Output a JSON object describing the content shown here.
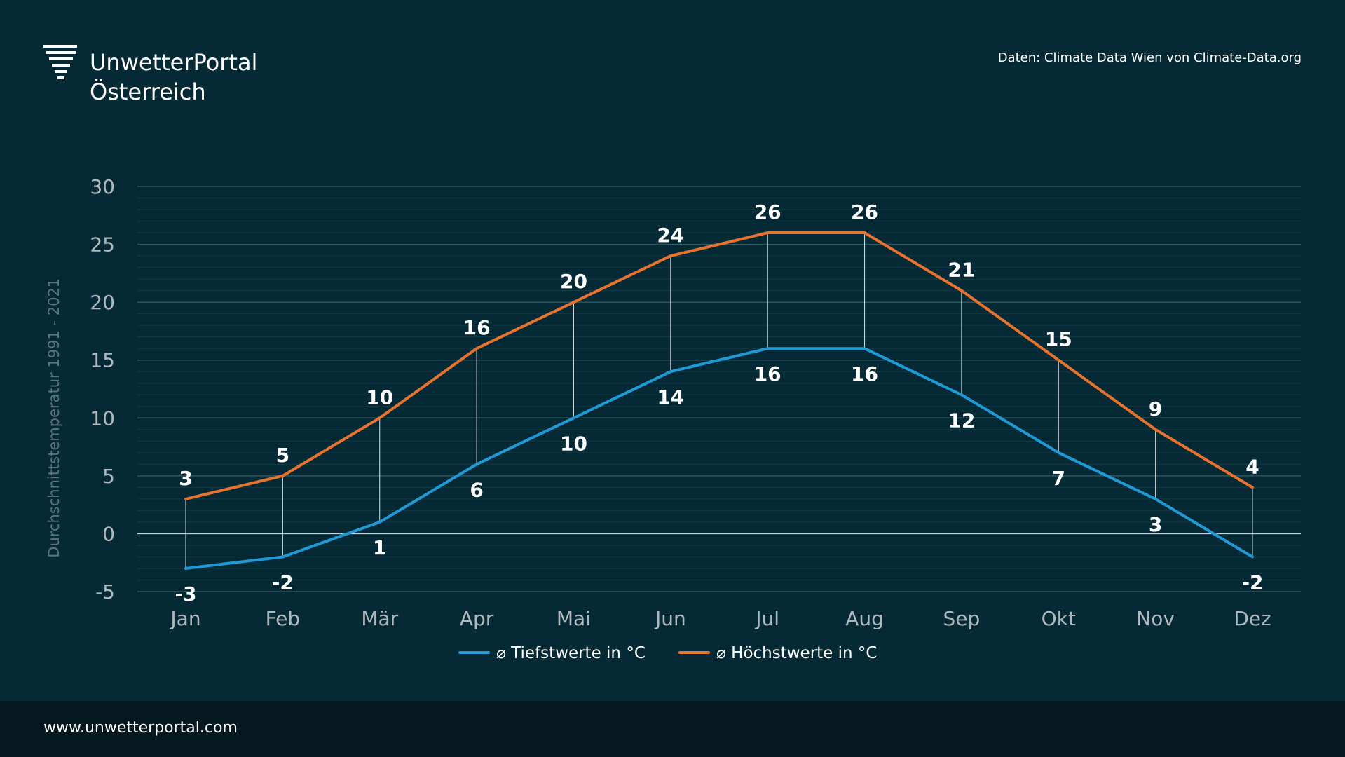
{
  "brand": {
    "line1": "UnwetterPortal",
    "line2": "Österreich"
  },
  "source": "Daten: Climate Data Wien von Climate-Data.org",
  "footer": {
    "url": "www.unwetterportal.com"
  },
  "colors": {
    "background": "#062a35",
    "footer": "#051820",
    "low_series": "#1f9ad6",
    "high_series": "#e8732f",
    "gridline": "#2e5660",
    "minor_gridline": "#123a44"
  },
  "icons": {
    "logo": "weather-tornado-icon"
  },
  "chart_data": {
    "type": "line",
    "ylabel": "Durchschnittstemperatur 1991 - 2021",
    "xlabel": "",
    "categories": [
      "Jan",
      "Feb",
      "Mär",
      "Apr",
      "Mai",
      "Jun",
      "Jul",
      "Aug",
      "Sep",
      "Okt",
      "Nov",
      "Dez"
    ],
    "ylim": [
      -5,
      30
    ],
    "yticks": [
      30,
      25,
      20,
      15,
      10,
      5,
      0,
      -5
    ],
    "grid": true,
    "legend_position": "bottom-center",
    "series": [
      {
        "name": "⌀ Tiefstwerte in °C",
        "color": "#1f9ad6",
        "values": [
          -3,
          -2,
          1,
          6,
          10,
          14,
          16,
          16,
          12,
          7,
          3,
          -2
        ]
      },
      {
        "name": "⌀ Höchstwerte in °C",
        "color": "#e8732f",
        "values": [
          3,
          5,
          10,
          16,
          20,
          24,
          26,
          26,
          21,
          15,
          9,
          4
        ]
      }
    ]
  }
}
